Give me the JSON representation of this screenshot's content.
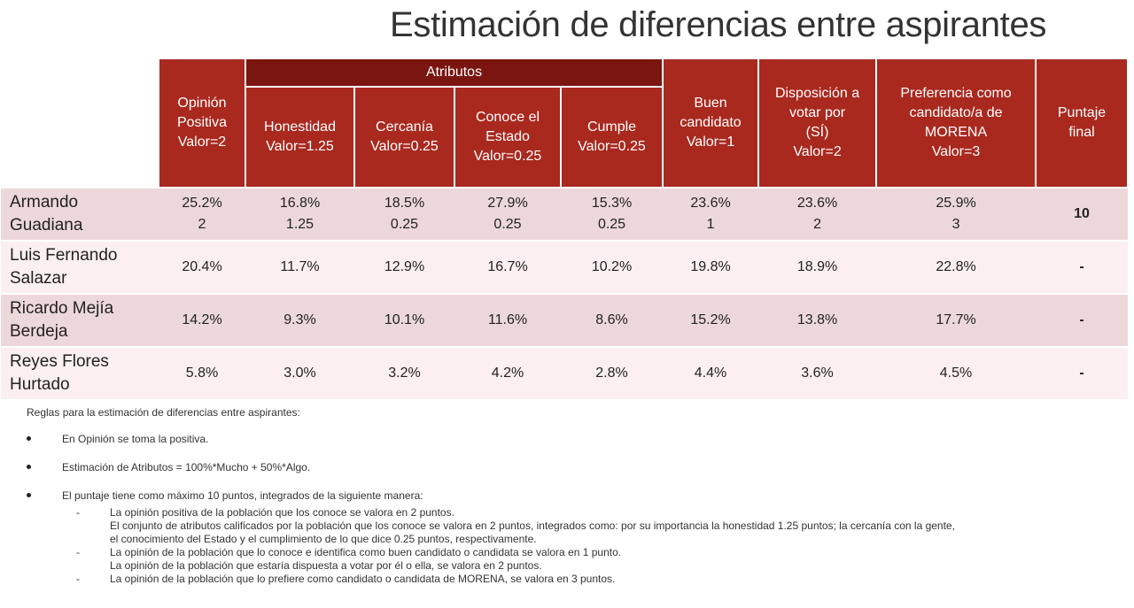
{
  "title": "Estimación de diferencias entre aspirantes",
  "header": {
    "group_label": "Atributos",
    "columns": [
      [
        "Opinión",
        "Positiva",
        "Valor=2"
      ],
      [
        "Honestidad",
        "Valor=1.25"
      ],
      [
        "Cercanía",
        "Valor=0.25"
      ],
      [
        "Conoce el",
        "Estado",
        "Valor=0.25"
      ],
      [
        "Cumple",
        "Valor=0.25"
      ],
      [
        "Buen",
        "candidato",
        "Valor=1"
      ],
      [
        "Disposición a",
        "votar por",
        "(SÍ)",
        "Valor=2"
      ],
      [
        "Preferencia como",
        "candidato/a de",
        "MORENA",
        "Valor=3"
      ],
      [
        "Puntaje",
        "final"
      ]
    ]
  },
  "rows": [
    {
      "name": [
        "Armando",
        "Guadiana"
      ],
      "cells": [
        [
          "25.2%",
          "2"
        ],
        [
          "16.8%",
          "1.25"
        ],
        [
          "18.5%",
          "0.25"
        ],
        [
          "27.9%",
          "0.25"
        ],
        [
          "15.3%",
          "0.25"
        ],
        [
          "23.6%",
          "1"
        ],
        [
          "23.6%",
          "2"
        ],
        [
          "25.9%",
          "3"
        ]
      ],
      "final": "10"
    },
    {
      "name": [
        "Luis Fernando",
        "Salazar"
      ],
      "cells": [
        [
          "20.4%"
        ],
        [
          "11.7%"
        ],
        [
          "12.9%"
        ],
        [
          "16.7%"
        ],
        [
          "10.2%"
        ],
        [
          "19.8%"
        ],
        [
          "18.9%"
        ],
        [
          "22.8%"
        ]
      ],
      "final": "-"
    },
    {
      "name": [
        "Ricardo Mejía",
        "Berdeja"
      ],
      "cells": [
        [
          "14.2%"
        ],
        [
          "9.3%"
        ],
        [
          "10.1%"
        ],
        [
          "11.6%"
        ],
        [
          "8.6%"
        ],
        [
          "15.2%"
        ],
        [
          "13.8%"
        ],
        [
          "17.7%"
        ]
      ],
      "final": "-"
    },
    {
      "name": [
        "Reyes Flores",
        "Hurtado"
      ],
      "cells": [
        [
          "5.8%"
        ],
        [
          "3.0%"
        ],
        [
          "3.2%"
        ],
        [
          "4.2%"
        ],
        [
          "2.8%"
        ],
        [
          "4.4%"
        ],
        [
          "3.6%"
        ],
        [
          "4.5%"
        ]
      ],
      "final": "-"
    }
  ],
  "notes": {
    "intro": "Reglas para la estimación de diferencias entre aspirantes:",
    "bullet1": "En Opinión se toma la positiva.",
    "bullet2": "Estimación de Atributos = 100%*Mucho + 50%*Algo.",
    "bullet3": "El puntaje tiene como máximo 10 puntos, integrados de la siguiente manera:",
    "subs": [
      {
        "dash": true,
        "text": "La opinión positiva de la población que los conoce se valora en 2 puntos."
      },
      {
        "dash": false,
        "text": "El conjunto de atributos calificados por la población que los conoce se valora en 2 puntos, integrados como: por su importancia la honestidad 1.25 puntos; la cercanía con la gente,"
      },
      {
        "dash": false,
        "text": "el conocimiento del Estado y el cumplimiento de lo que dice 0.25 puntos, respectivamente."
      },
      {
        "dash": true,
        "text": "La opinión de la población que lo conoce e identifica como buen candidato o candidata se valora en 1 punto."
      },
      {
        "dash": false,
        "text": "La opinión de la población que estaría dispuesta a votar por él o ella, se valora en 2 puntos."
      },
      {
        "dash": true,
        "text": "La opinión de la población que lo prefiere como candidato o candidata de MORENA, se valora en 3 puntos."
      }
    ]
  }
}
